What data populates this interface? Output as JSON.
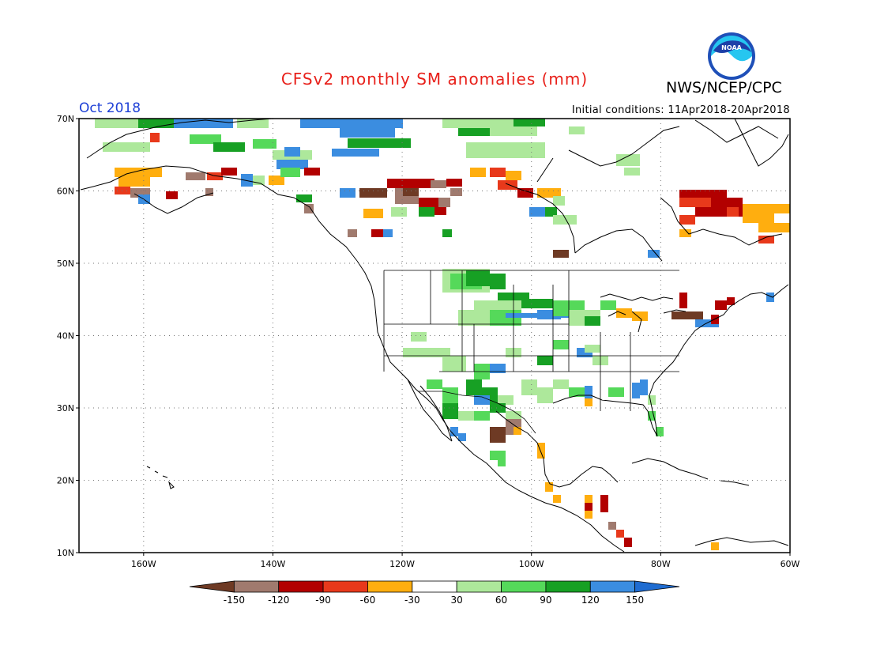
{
  "title": "CFSv2 monthly SM anomalies (mm)",
  "valid_month": "Oct 2018",
  "initial_conditions": "Initial conditions: 11Apr2018-20Apr2018",
  "agency": "NWS/NCEP/CPC",
  "logo_text": "NOAA",
  "map": {
    "lon_range": [
      -170,
      -60
    ],
    "lat_range": [
      10,
      70
    ],
    "lat_labels": [
      "70N",
      "60N",
      "50N",
      "40N",
      "30N",
      "20N",
      "10N"
    ],
    "lon_labels": [
      "160W",
      "140W",
      "120W",
      "100W",
      "80W",
      "60W"
    ],
    "grid": "dotted"
  },
  "colorbar": {
    "ticks": [
      "-150",
      "-120",
      "-90",
      "-60",
      "-30",
      "30",
      "60",
      "90",
      "120",
      "150"
    ],
    "colors": [
      "#6e3a24",
      "#a07a6e",
      "#b20000",
      "#e8391b",
      "#ffae0f",
      "#ffffff",
      "#ade89b",
      "#55d95a",
      "#17a024",
      "#3b8de0",
      "#1f6cd1"
    ]
  },
  "colors": {
    "title": "#e8201a",
    "valid_month": "#1d3fd6"
  }
}
